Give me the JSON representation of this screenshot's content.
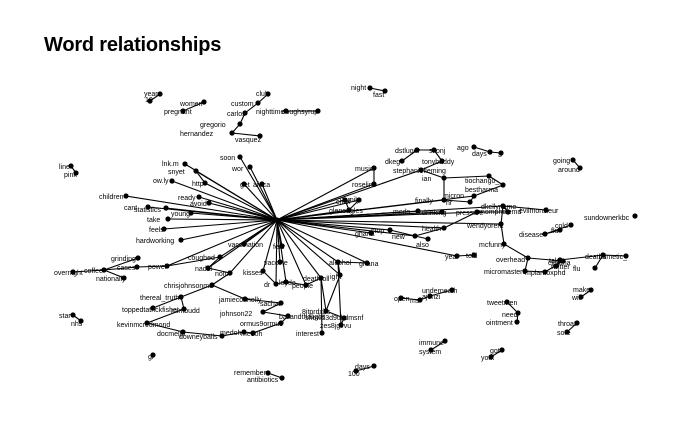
{
  "title": "Word relationships",
  "colors": {
    "edge": "#000000",
    "node": "#000000",
    "label": "#000000",
    "background": "#ffffff"
  },
  "words": {
    "n1": "year",
    "n2": "10",
    "n3": "women",
    "n4": "pregnant",
    "n5": "custom",
    "n6": "club",
    "n7": "carlos",
    "n8": "nighttime",
    "n9": "coughsyrup",
    "n10": "gregorio",
    "n11": "hernandez",
    "n12": "vasquez",
    "n13": "night",
    "n14": "fast",
    "n15": "soon",
    "n16": "wor",
    "n17": "lnk.m",
    "n18": "ow.ly",
    "n19": "snyet",
    "n20": "http",
    "n21": "get",
    "n22": "africa",
    "n23": "children",
    "n24": "statistics",
    "n25": "cant",
    "n26": "take",
    "n27": "ready",
    "n28": "avoid",
    "n29": "young",
    "n30": "feels",
    "n31": "hardworking",
    "n32": "grinding",
    "n33": "overnight",
    "n34": "coffee",
    "n35": "nationally",
    "n36": "cases",
    "n37": "power",
    "n38": "coughed",
    "n39": "nadal",
    "n40": "nom",
    "n41": "vaccination",
    "n42": "chrisjohnsonmd",
    "n43": "thereal_truth",
    "n44": "toppedtatrickfisher",
    "n45": "mimbudd",
    "n46": "kevinmcredmond",
    "n47": "docmeljo",
    "n48": "downeyballs",
    "n49": "medoh",
    "n50": "jamieconnolly",
    "n51": "sachar",
    "n52": "johnson22",
    "n53": "bailandthalight",
    "n54": "ormus9ormus",
    "n55": "medoh",
    "n56": "kisses",
    "n57": "dr",
    "n58": "loyde",
    "n59": "vaccine",
    "n60": "fear",
    "n61": "people",
    "n62": "deathtoll",
    "n63": "interest",
    "n64": "8jtprdxbs",
    "n65": "showd3d9ukdmsnf",
    "n66": "zes8jgvvu",
    "n67": "alcohol",
    "n68": "ghana",
    "n69": "ight",
    "n70": "music",
    "n71": "roseline",
    "n72": "chief",
    "n73": "family",
    "n74": "gleneagles",
    "n75": "dkeg",
    "n76": "dstluger",
    "n77": "skonj",
    "n78": "tonybaddy",
    "n79": "stephaniefleming",
    "n80": "ian",
    "n81": "ago",
    "n82": "days",
    "n83": "3",
    "n84": "bestharma",
    "n85": "tiochango_",
    "n86": "hr",
    "n87": "finally",
    "n88": "also",
    "n89": "ghana",
    "n90": "stop",
    "n91": "health",
    "n92": "new",
    "n93": "meds",
    "n94": "drinking",
    "n95": "pressure",
    "n96": "micron",
    "n97": "mompholemd",
    "n98": "wendyorent",
    "n99": "dkellyname",
    "n100": "evilmonsieur",
    "n101": "mcfunny",
    "n102": "disease",
    "n103": "flu",
    "n104": "year",
    "n105": "told",
    "n106": "overhead",
    "n107": "cinema",
    "n108": "micromasters",
    "n109": "mplarnoxphd",
    "n110": "cold",
    "n111": "twitter",
    "n112": "going",
    "n113": "around",
    "n114": "sundownerkbc",
    "n115": "take",
    "n116": "mimetic_",
    "n117": "deaths",
    "n118": "flu",
    "n119": "make",
    "n120": "will",
    "n121": "underneath",
    "n122": "ajenzi",
    "n123": "open",
    "n124": "ms",
    "n125": "tweetmen",
    "n126": "need",
    "n127": "ointment",
    "n128": "throat",
    "n129": "sore",
    "n130": "immune",
    "n131": "system",
    "n132": "got",
    "n133": "york",
    "n134": "remember",
    "n135": "antibiotics",
    "n136": "100",
    "n137": "days",
    "n138": "gr",
    "n139": "star",
    "n140": "nhs",
    "n141": "line",
    "n142": "pink"
  }
}
